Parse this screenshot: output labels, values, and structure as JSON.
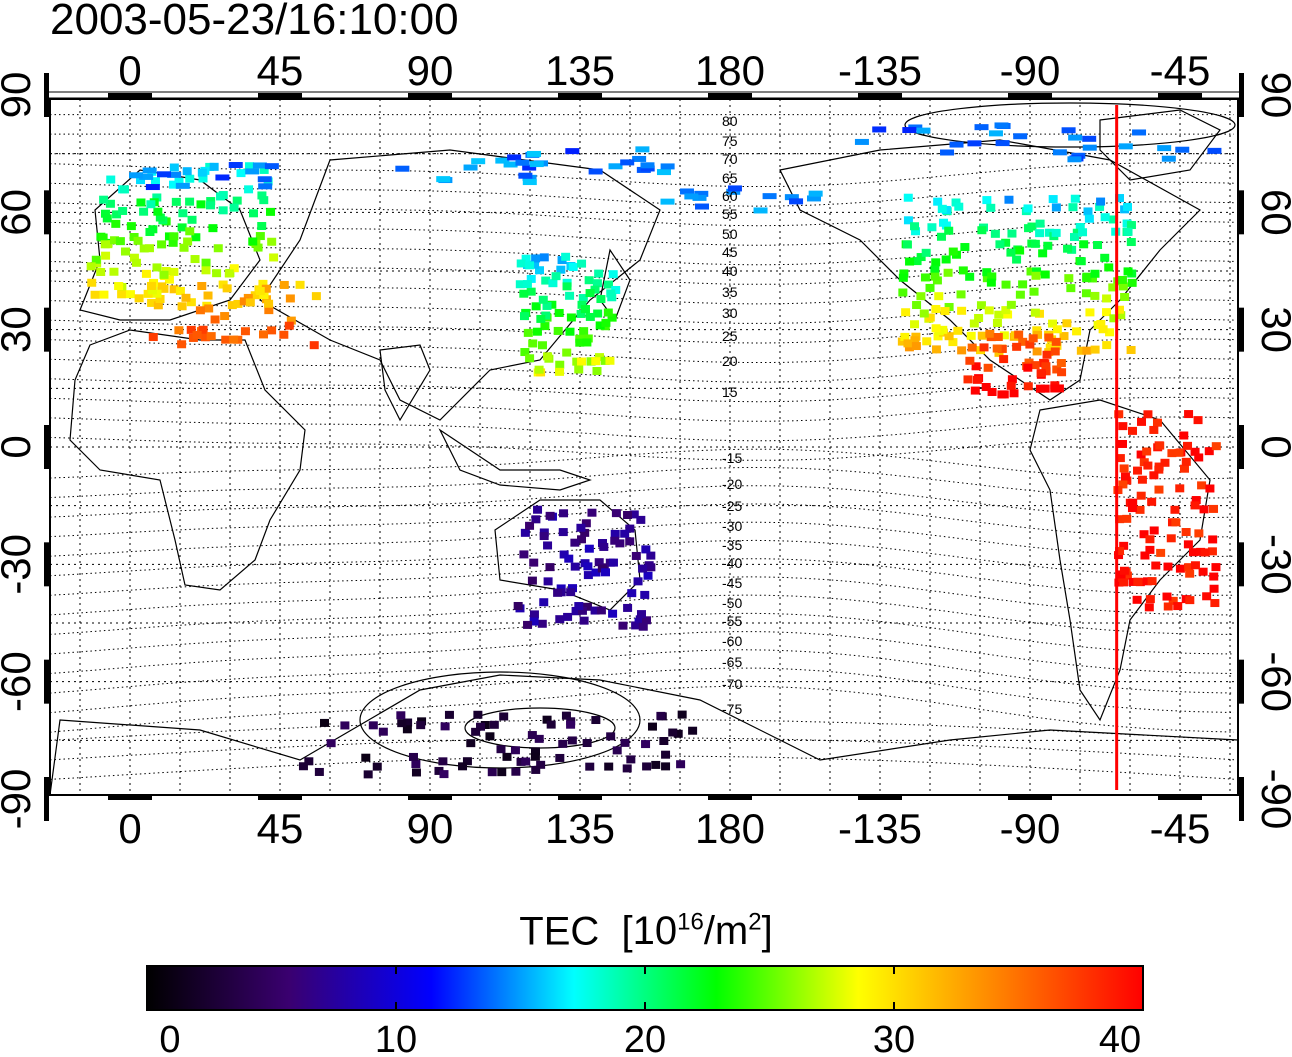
{
  "timestamp": "2003-05-23/16:10:00",
  "map": {
    "lon_ticks": [
      "0",
      "45",
      "90",
      "135",
      "180",
      "-135",
      "-90",
      "-45"
    ],
    "lat_ticks": [
      "90",
      "60",
      "30",
      "0",
      "-30",
      "-60",
      "-90"
    ],
    "contour_labels_north": [
      "80",
      "75",
      "70",
      "65",
      "60",
      "55",
      "50",
      "45",
      "40",
      "35",
      "30",
      "25",
      "20",
      "15"
    ],
    "contour_labels_south": [
      "-15",
      "-20",
      "-25",
      "-30",
      "-35",
      "-40",
      "-45",
      "-50",
      "-55",
      "-60",
      "-65",
      "-70",
      "-75"
    ],
    "terminator_color": "#ff0000",
    "terminator_lon": -64,
    "tec_regions": [
      {
        "name": "europe",
        "lat": 55,
        "lon": 15,
        "tec": 24
      },
      {
        "name": "mediterranean",
        "lat": 35,
        "lon": 30,
        "tec": 34
      },
      {
        "name": "east-asia",
        "lat": 35,
        "lon": 130,
        "tec": 22
      },
      {
        "name": "north-america",
        "lat": 45,
        "lon": -95,
        "tec": 24
      },
      {
        "name": "central-america",
        "lat": 22,
        "lon": -95,
        "tec": 38
      },
      {
        "name": "south-america",
        "lat": -15,
        "lon": -50,
        "tec": 39
      },
      {
        "name": "australia",
        "lat": -30,
        "lon": 135,
        "tec": 7
      },
      {
        "name": "antarctica",
        "lat": -75,
        "lon": 110,
        "tec": 3
      }
    ]
  },
  "colorbar": {
    "title": "TEC",
    "units_base": "[10",
    "units_exp": "16",
    "units_mid": "/m",
    "units_exp2": "2",
    "units_end": "]",
    "min": 0,
    "max": 40,
    "ticks": [
      "0",
      "10",
      "20",
      "30",
      "40"
    ],
    "colors": [
      "#000000",
      "#3a0070",
      "#0000ff",
      "#00ffff",
      "#00ff00",
      "#ffff00",
      "#ff8000",
      "#ff0000"
    ]
  }
}
